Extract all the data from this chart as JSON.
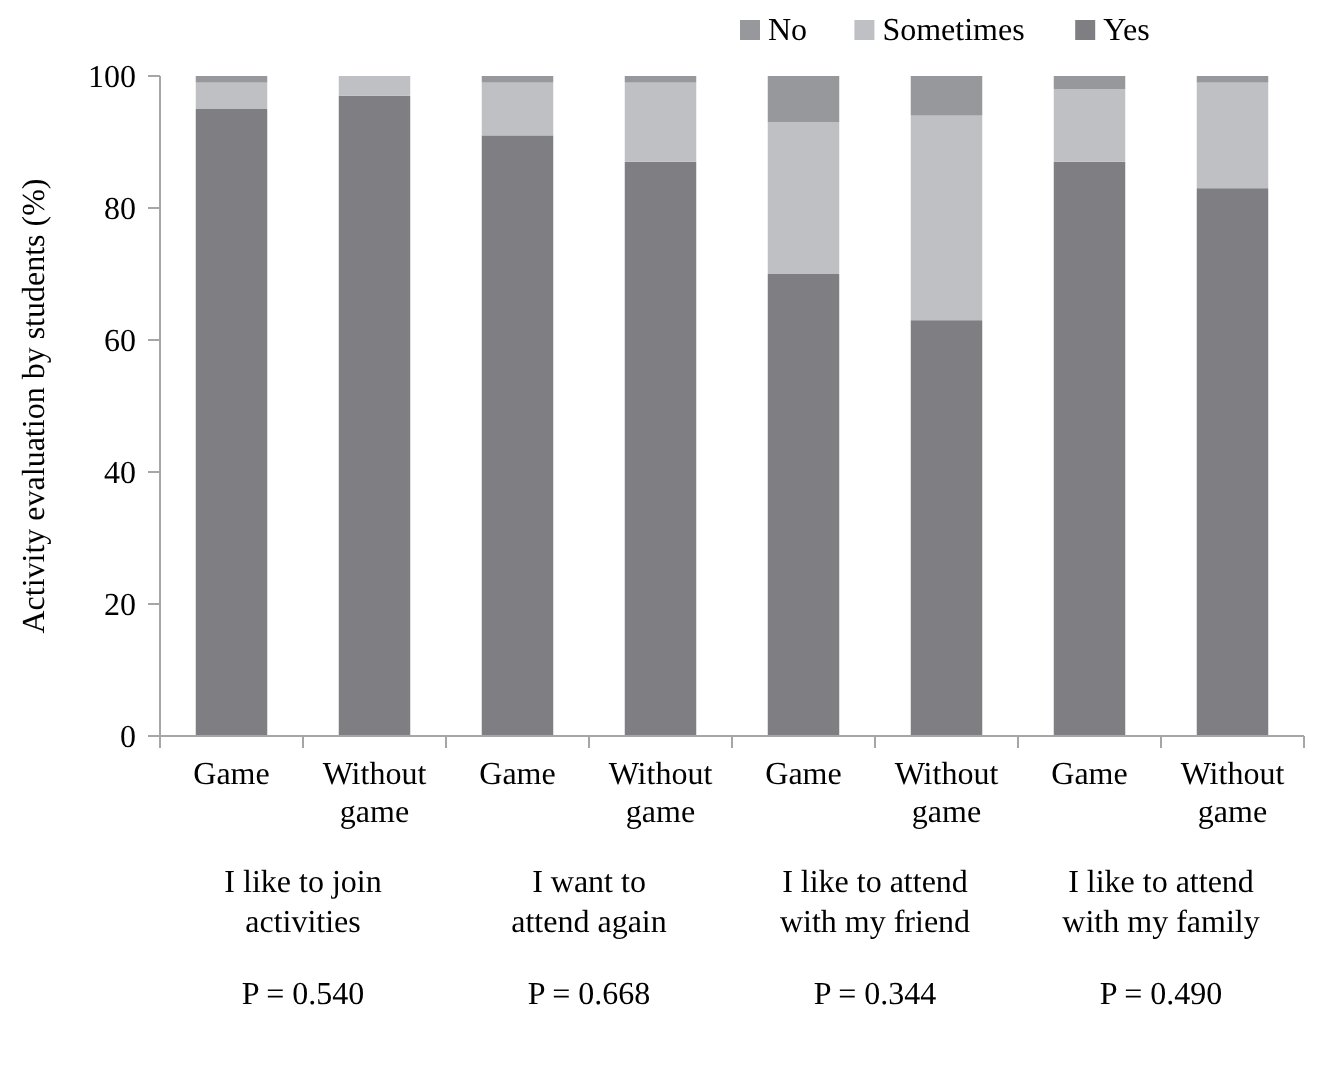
{
  "chart_data": {
    "type": "bar",
    "stacked": true,
    "ylabel": "Activity evaluation by students (%)",
    "categories": [
      "Game",
      "Without game",
      "Game",
      "Without game",
      "Game",
      "Without game",
      "Game",
      "Without game"
    ],
    "series": [
      {
        "name": "Yes",
        "color": "#7f7f83",
        "values": [
          95,
          97,
          91,
          87,
          70,
          63,
          87,
          83
        ]
      },
      {
        "name": "Sometimes",
        "color": "#bfc0c3",
        "values": [
          4,
          3,
          8,
          12,
          23,
          31,
          11,
          16
        ]
      },
      {
        "name": "No",
        "color": "#97989b",
        "values": [
          1,
          0,
          1,
          1,
          7,
          6,
          2,
          1
        ]
      }
    ],
    "ylim": [
      0,
      100
    ],
    "yticks": [
      0,
      20,
      40,
      60,
      80,
      100
    ],
    "grid": false,
    "legend": "top right",
    "annotations": [
      "I like to join\nactivities",
      "I want to\nattend again",
      "I like to attend\nwith my friend",
      "I like to attend\nwith my family",
      "P = 0.540",
      "P = 0.668",
      "P = 0.344",
      "P = 0.490"
    ]
  }
}
